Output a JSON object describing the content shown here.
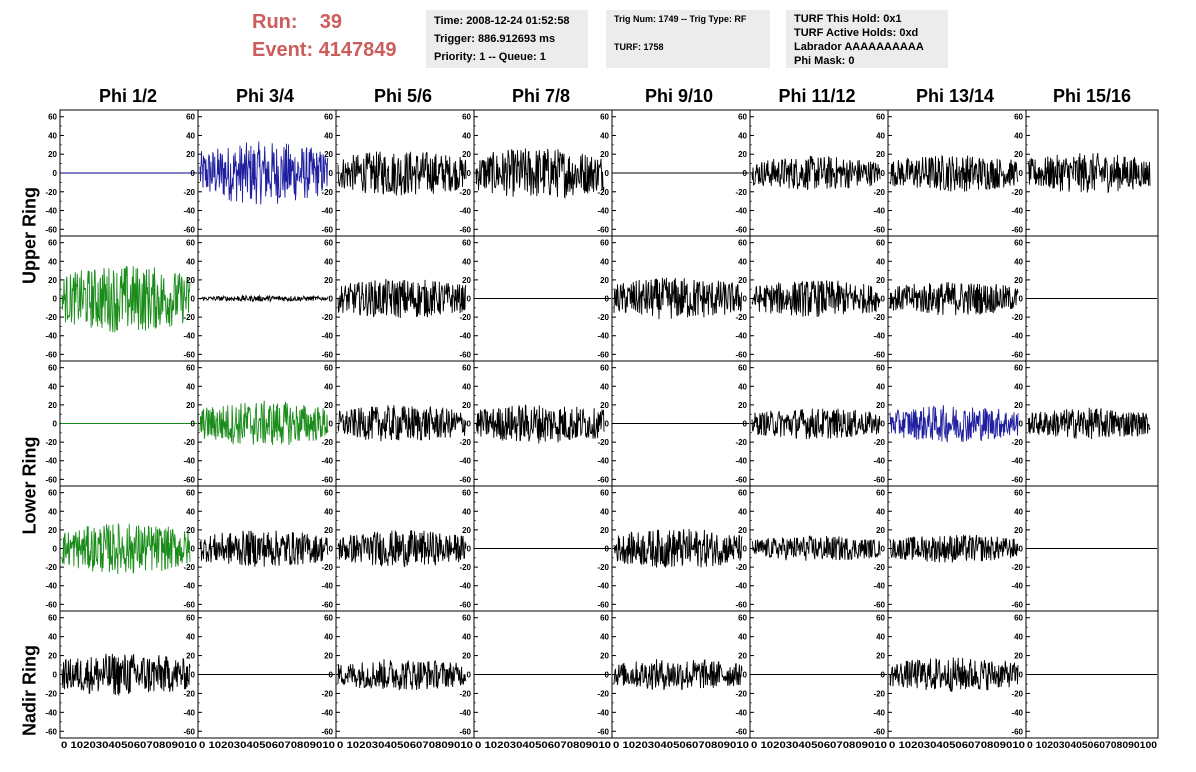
{
  "run": {
    "run_label": "Run:",
    "run_value": "39",
    "event_label": "Event:",
    "event_value": "4147849",
    "color": "#cd5c5c"
  },
  "info_panels": {
    "time": "Time: 2008-12-24 01:52:58",
    "trigger": "Trigger: 886.912693 ms",
    "priority": "Priority: 1 -- Queue: 1",
    "trig_num": "Trig Num: 1749 -- Trig Type: RF",
    "turf": "TURF: 1758",
    "turf_this_hold": "TURF This Hold: 0x1",
    "turf_active_holds": "TURF Active Holds: 0xd",
    "labrador": "Labrador AAAAAAAAAA",
    "phi_mask": "Phi Mask: 0"
  },
  "columns": [
    "Phi 1/2",
    "Phi 3/4",
    "Phi 5/6",
    "Phi 7/8",
    "Phi 9/10",
    "Phi 11/12",
    "Phi 13/14",
    "Phi 15/16"
  ],
  "rows": [
    "Upper Ring",
    "Lower Ring",
    "Nadir Ring"
  ],
  "colors": {
    "normal": "#000000",
    "flat_blue": "#00008b",
    "blue": "#1f1fa0",
    "green": "#1a8c1a"
  },
  "chart_data": {
    "type": "line",
    "ylim": [
      -65,
      65
    ],
    "xlim": [
      0,
      100
    ],
    "y_ticks": [
      60,
      40,
      20,
      0,
      -20,
      -40,
      -60
    ],
    "x_ticks": [
      "0",
      "10",
      "20",
      "30",
      "40",
      "50",
      "60",
      "70",
      "80",
      "90",
      "100"
    ],
    "x_tick_strip": "0 10203040506070809010",
    "x_tick_strip_last": "0 102030405060708090100",
    "panels": [
      [
        "flat_blue",
        "blue",
        "black",
        "black",
        "flat_black",
        "black",
        "black",
        "black"
      ],
      [
        "green",
        "small",
        "black",
        "flat_black",
        "black",
        "black",
        "black",
        "flat_black"
      ],
      [
        "flat_green",
        "green",
        "black",
        "black",
        "flat_black",
        "black",
        "blue",
        "black"
      ],
      [
        "green",
        "black",
        "black",
        "flat_black",
        "black",
        "black",
        "black",
        "flat_black"
      ],
      [
        "black",
        "flat_black",
        "black",
        "flat_black",
        "black",
        "flat_black",
        "black",
        "flat_black"
      ]
    ],
    "amplitudes": [
      [
        0,
        22,
        16,
        18,
        0,
        12,
        13,
        14
      ],
      [
        24,
        2,
        14,
        0,
        15,
        13,
        12,
        0
      ],
      [
        0,
        16,
        13,
        14,
        0,
        11,
        13,
        11
      ],
      [
        18,
        13,
        13,
        0,
        14,
        9,
        10,
        0
      ],
      [
        15,
        0,
        11,
        0,
        11,
        0,
        12,
        0
      ]
    ]
  }
}
